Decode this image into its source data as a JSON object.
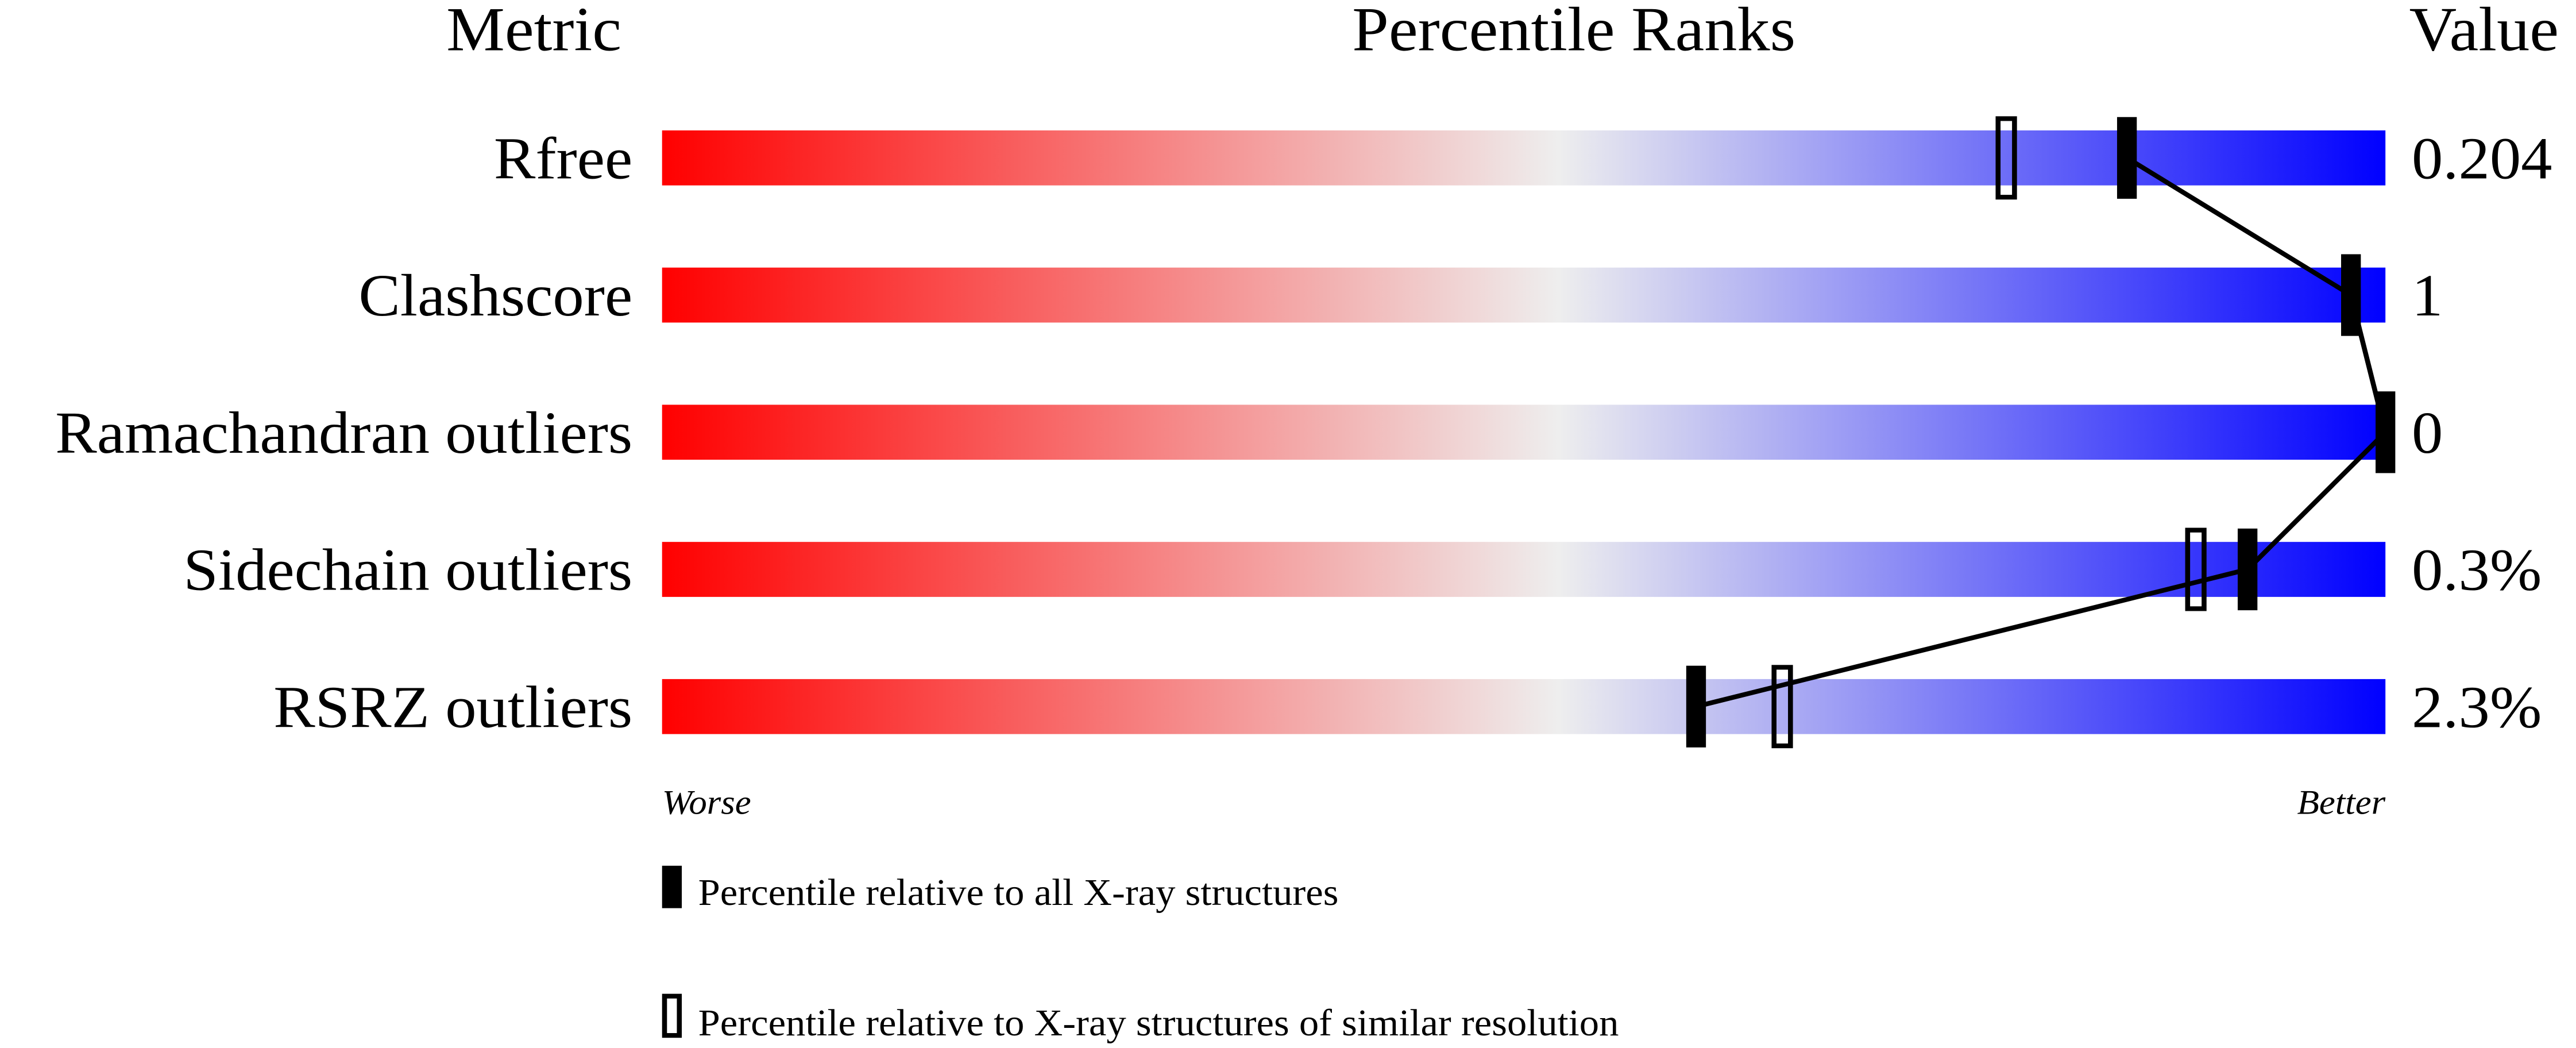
{
  "chart_data": {
    "type": "percentile-slider",
    "headers": {
      "metric": "Metric",
      "ranks": "Percentile Ranks",
      "value": "Value"
    },
    "xlim": [
      0,
      100
    ],
    "axis_labels": {
      "left": "Worse",
      "right": "Better"
    },
    "gradient_colors": {
      "worse": "#ff0000",
      "middle": "#eeeeee",
      "better": "#0000ff"
    },
    "metrics": [
      {
        "name": "Rfree",
        "value": "0.204",
        "percentile_all": 85,
        "percentile_similar": 78
      },
      {
        "name": "Clashscore",
        "value": "1",
        "percentile_all": 98,
        "percentile_similar": null
      },
      {
        "name": "Ramachandran outliers",
        "value": "0",
        "percentile_all": 100,
        "percentile_similar": null
      },
      {
        "name": "Sidechain outliers",
        "value": "0.3%",
        "percentile_all": 92,
        "percentile_similar": 89
      },
      {
        "name": "RSRZ outliers",
        "value": "2.3%",
        "percentile_all": 60,
        "percentile_similar": 65
      }
    ],
    "legend": [
      {
        "marker": "filled",
        "label": "Percentile relative to all X-ray structures"
      },
      {
        "marker": "open",
        "label": "Percentile relative to X-ray structures of similar resolution"
      }
    ]
  }
}
